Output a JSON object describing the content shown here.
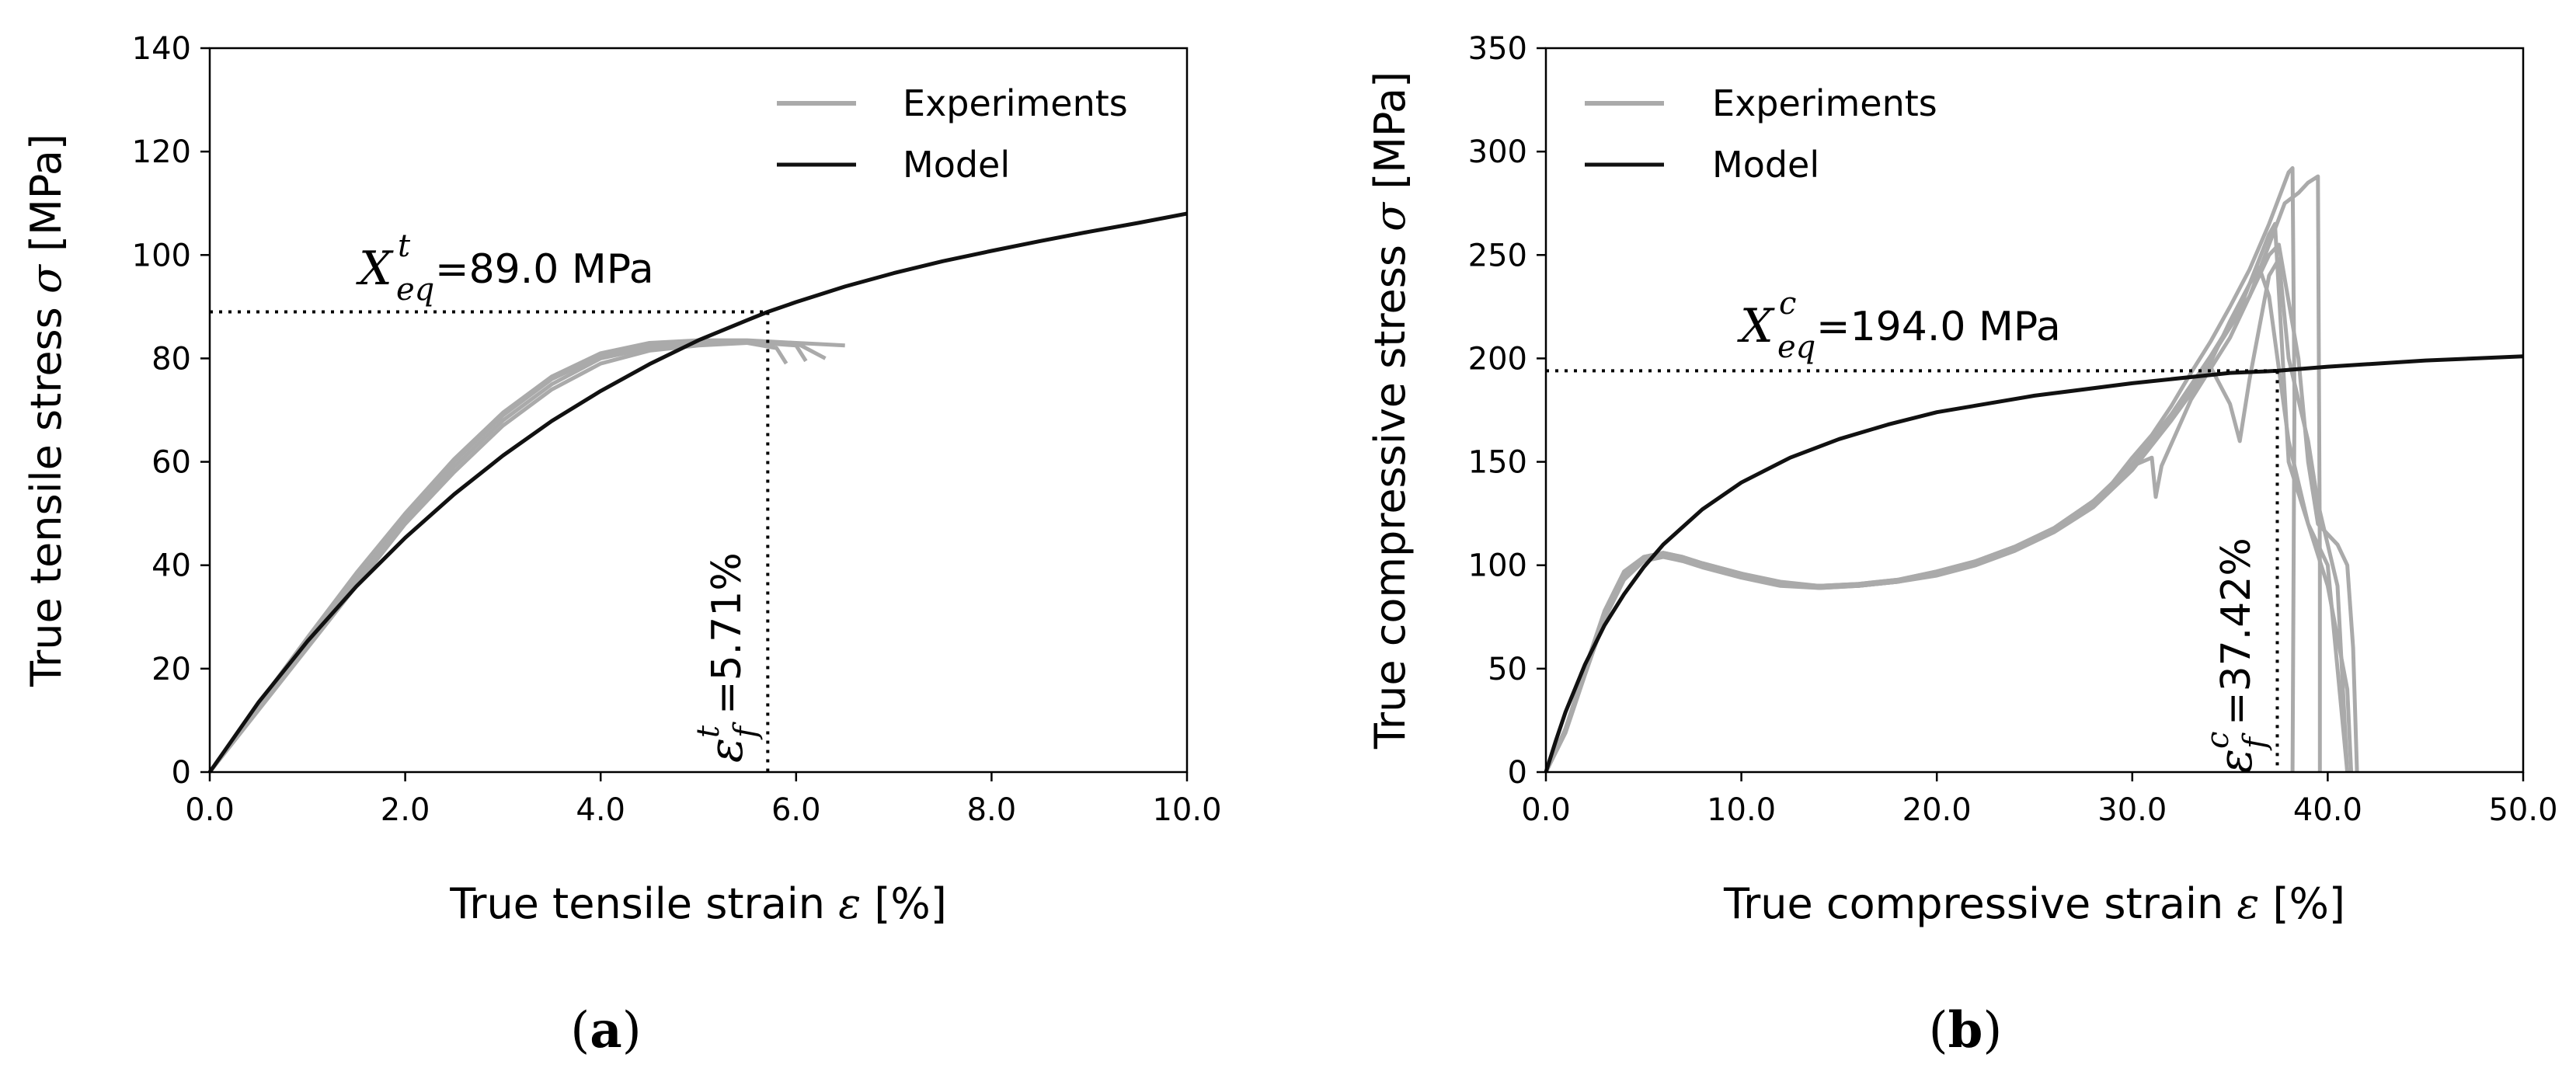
{
  "colors": {
    "experiments": "#aaaaaa",
    "model": "#111111",
    "axis": "#000000"
  },
  "chart_data": [
    {
      "type": "line",
      "panel_label_open": "(",
      "panel_label_letter": "a",
      "panel_label_close": ")",
      "xlabel_main": "True tensile strain ",
      "xlabel_symbol": "ε",
      "xlabel_unit": " [%]",
      "ylabel_main": "True tensile stress ",
      "ylabel_symbol": "σ",
      "ylabel_unit": " [MPa]",
      "xlim": [
        0,
        10
      ],
      "ylim": [
        0,
        140
      ],
      "xticks": [
        0,
        2,
        4,
        6,
        8,
        10
      ],
      "xtick_labels": [
        "0.0",
        "2.0",
        "4.0",
        "6.0",
        "8.0",
        "10.0"
      ],
      "yticks": [
        0,
        20,
        40,
        60,
        80,
        100,
        120,
        140
      ],
      "ytick_labels": [
        "0",
        "20",
        "40",
        "60",
        "80",
        "100",
        "120",
        "140"
      ],
      "legend": [
        "Experiments",
        "Model"
      ],
      "legend_position": "top-right",
      "series": [
        {
          "name": "Model",
          "x": [
            0,
            0.5,
            1,
            1.5,
            2,
            2.5,
            3,
            3.5,
            4,
            4.5,
            5,
            5.5,
            5.71,
            6,
            6.5,
            7,
            7.5,
            8,
            8.5,
            9,
            9.5,
            10
          ],
          "y": [
            0,
            13.5,
            25.3,
            35.9,
            45.3,
            53.7,
            61.2,
            67.9,
            73.7,
            78.9,
            83.5,
            87.4,
            89.0,
            90.9,
            93.9,
            96.5,
            98.8,
            100.8,
            102.7,
            104.5,
            106.2,
            108.0
          ]
        },
        {
          "name": "Experiments",
          "x": [
            0,
            0.5,
            1,
            1.5,
            2,
            2.5,
            3,
            3.5,
            4,
            4.5,
            5,
            5.5,
            6,
            6.2,
            6.5
          ],
          "y": [
            0,
            12,
            24,
            36,
            48,
            58,
            67,
            74,
            79,
            81.5,
            82.5,
            83,
            83,
            82.8,
            82.5
          ]
        },
        {
          "name": "Experiments",
          "x": [
            0,
            0.5,
            1,
            1.5,
            2,
            2.5,
            3,
            3.5,
            4,
            4.5,
            5,
            5.5,
            5.8,
            5.9
          ],
          "y": [
            0,
            13,
            25.5,
            38,
            49.5,
            60,
            69,
            76,
            80.5,
            82.5,
            83,
            83,
            82,
            79
          ]
        },
        {
          "name": "Experiments",
          "x": [
            0,
            0.5,
            1,
            1.5,
            2,
            2.5,
            3,
            3.5,
            4,
            4.5,
            5,
            5.5,
            6,
            6.1
          ],
          "y": [
            0,
            12.5,
            25,
            37,
            48.5,
            59,
            68,
            75,
            80,
            82,
            83,
            83.2,
            82.5,
            79.5
          ]
        },
        {
          "name": "Experiments",
          "x": [
            0,
            0.5,
            1,
            1.5,
            2,
            2.5,
            3,
            3.5,
            4,
            4.5,
            5,
            5.5,
            6,
            6.3
          ],
          "y": [
            0,
            13.2,
            26,
            38.5,
            50,
            60.5,
            69.5,
            76.5,
            81,
            83,
            83.5,
            83.5,
            83,
            80
          ]
        }
      ],
      "annotations": {
        "x_eq_symbol": "X",
        "x_eq_sup": "t",
        "x_eq_sub": "eq",
        "x_eq_text": "=89.0 MPa",
        "x_eq_value": 89.0,
        "eps_f_symbol": "ε",
        "eps_f_sup": "t",
        "eps_f_sub": "f",
        "eps_f_text": "=5.71%",
        "eps_f_value": 5.71
      }
    },
    {
      "type": "line",
      "panel_label_open": "(",
      "panel_label_letter": "b",
      "panel_label_close": ")",
      "xlabel_main": "True compressive strain ",
      "xlabel_symbol": "ε",
      "xlabel_unit": " [%]",
      "ylabel_main": "True compressive stress ",
      "ylabel_symbol": "σ",
      "ylabel_unit": " [MPa]",
      "xlim": [
        0,
        50
      ],
      "ylim": [
        0,
        350
      ],
      "xticks": [
        0,
        10,
        20,
        30,
        40,
        50
      ],
      "xtick_labels": [
        "0.0",
        "10.0",
        "20.0",
        "30.0",
        "40.0",
        "50.0"
      ],
      "yticks": [
        0,
        50,
        100,
        150,
        200,
        250,
        300,
        350
      ],
      "ytick_labels": [
        "0",
        "50",
        "100",
        "150",
        "200",
        "250",
        "300",
        "350"
      ],
      "legend": [
        "Experiments",
        "Model"
      ],
      "legend_position": "top-left",
      "series": [
        {
          "name": "Model",
          "x": [
            0,
            0.5,
            1,
            2,
            3,
            4,
            5,
            6,
            8,
            10,
            12.5,
            15,
            17.5,
            20,
            25,
            30,
            35,
            37.42,
            40,
            45,
            50
          ],
          "y": [
            0,
            15,
            29,
            52,
            71,
            86,
            99,
            110,
            127,
            140,
            152,
            161,
            168,
            174,
            182,
            188,
            193,
            194,
            196,
            199,
            201
          ]
        },
        {
          "name": "Experiments",
          "x": [
            0,
            1,
            2,
            3,
            4,
            5,
            6,
            7,
            8,
            10,
            12,
            14,
            16,
            18,
            20,
            22,
            24,
            26,
            28,
            29,
            30,
            31,
            32,
            33,
            34,
            35,
            36,
            37,
            38,
            38.2,
            38.3,
            38.2
          ],
          "y": [
            0,
            20,
            48,
            75,
            95,
            103,
            105,
            103,
            100,
            95,
            91,
            90,
            90,
            92,
            96,
            101,
            108,
            117,
            130,
            140,
            152,
            163,
            177,
            193,
            208,
            225,
            243,
            265,
            290,
            292,
            180,
            0
          ]
        },
        {
          "name": "Experiments",
          "x": [
            0,
            1,
            2,
            3,
            4,
            5,
            6,
            7,
            8,
            10,
            12,
            14,
            16,
            18,
            20,
            22,
            24,
            26,
            28,
            30,
            31,
            31.2,
            31.5,
            33,
            35,
            37,
            37.5,
            38.5,
            39,
            39.5,
            40.5,
            41,
            41.3,
            41.5
          ],
          "y": [
            0,
            21,
            50,
            78,
            97,
            104,
            106,
            104,
            101,
            96,
            92,
            90,
            91,
            93,
            97,
            102,
            109,
            118,
            131,
            148,
            152,
            133,
            148,
            180,
            210,
            250,
            255,
            200,
            150,
            120,
            110,
            100,
            60,
            0
          ]
        },
        {
          "name": "Experiments",
          "x": [
            0,
            1,
            2,
            3,
            4,
            5,
            6,
            7,
            8,
            10,
            12,
            14,
            16,
            18,
            20,
            22,
            24,
            26,
            28,
            30,
            32,
            34,
            35,
            35.5,
            36,
            37,
            37.5,
            38,
            39,
            39.5,
            40,
            40.5,
            41
          ],
          "y": [
            0,
            19,
            47,
            74,
            93,
            102,
            104,
            102,
            99,
            94,
            90,
            89,
            90,
            92,
            95,
            100,
            107,
            116,
            128,
            146,
            170,
            196,
            178,
            160,
            190,
            240,
            248,
            200,
            160,
            130,
            110,
            90,
            0
          ]
        },
        {
          "name": "Experiments",
          "x": [
            0,
            1,
            2,
            3,
            4,
            5,
            6,
            7,
            8,
            10,
            12,
            14,
            16,
            18,
            20,
            22,
            24,
            26,
            28,
            30,
            32,
            34,
            36,
            37,
            37.8,
            38.5,
            39,
            39.5,
            39.6,
            39.6
          ],
          "y": [
            0,
            20,
            49,
            76,
            96,
            104,
            106,
            104,
            101,
            96,
            91,
            90,
            90,
            92,
            96,
            101,
            108,
            118,
            131,
            148,
            172,
            200,
            230,
            255,
            275,
            280,
            285,
            288,
            100,
            0
          ]
        },
        {
          "name": "Experiments",
          "x": [
            0,
            1,
            2,
            3,
            4,
            5,
            6,
            7,
            8,
            10,
            12,
            14,
            16,
            18,
            20,
            22,
            24,
            26,
            28,
            30,
            32,
            34,
            35,
            36,
            36.5,
            37,
            38,
            39,
            40,
            40.5,
            41
          ],
          "y": [
            0,
            20,
            48,
            76,
            95,
            103,
            105,
            103,
            100,
            95,
            91,
            89,
            90,
            92,
            96,
            101,
            108,
            117,
            130,
            147,
            171,
            198,
            218,
            236,
            244,
            230,
            160,
            120,
            100,
            50,
            0
          ]
        },
        {
          "name": "Experiments",
          "x": [
            0,
            1,
            2,
            3,
            4,
            5,
            6,
            7,
            8,
            10,
            12,
            14,
            16,
            18,
            20,
            22,
            24,
            26,
            28,
            30,
            32,
            34,
            35.5,
            37,
            37.3,
            38,
            39,
            40,
            41,
            41.2
          ],
          "y": [
            0,
            21,
            49,
            77,
            96,
            104,
            106,
            104,
            100,
            95,
            91,
            90,
            91,
            93,
            97,
            102,
            109,
            118,
            131,
            149,
            173,
            201,
            224,
            260,
            265,
            150,
            120,
            90,
            40,
            0
          ]
        }
      ],
      "annotations": {
        "x_eq_symbol": "X",
        "x_eq_sup": "c",
        "x_eq_sub": "eq",
        "x_eq_text": "=194.0 MPa",
        "x_eq_value": 194.0,
        "eps_f_symbol": "ε",
        "eps_f_sup": "c",
        "eps_f_sub": "f",
        "eps_f_text": "=37.42%",
        "eps_f_value": 37.42
      }
    }
  ]
}
